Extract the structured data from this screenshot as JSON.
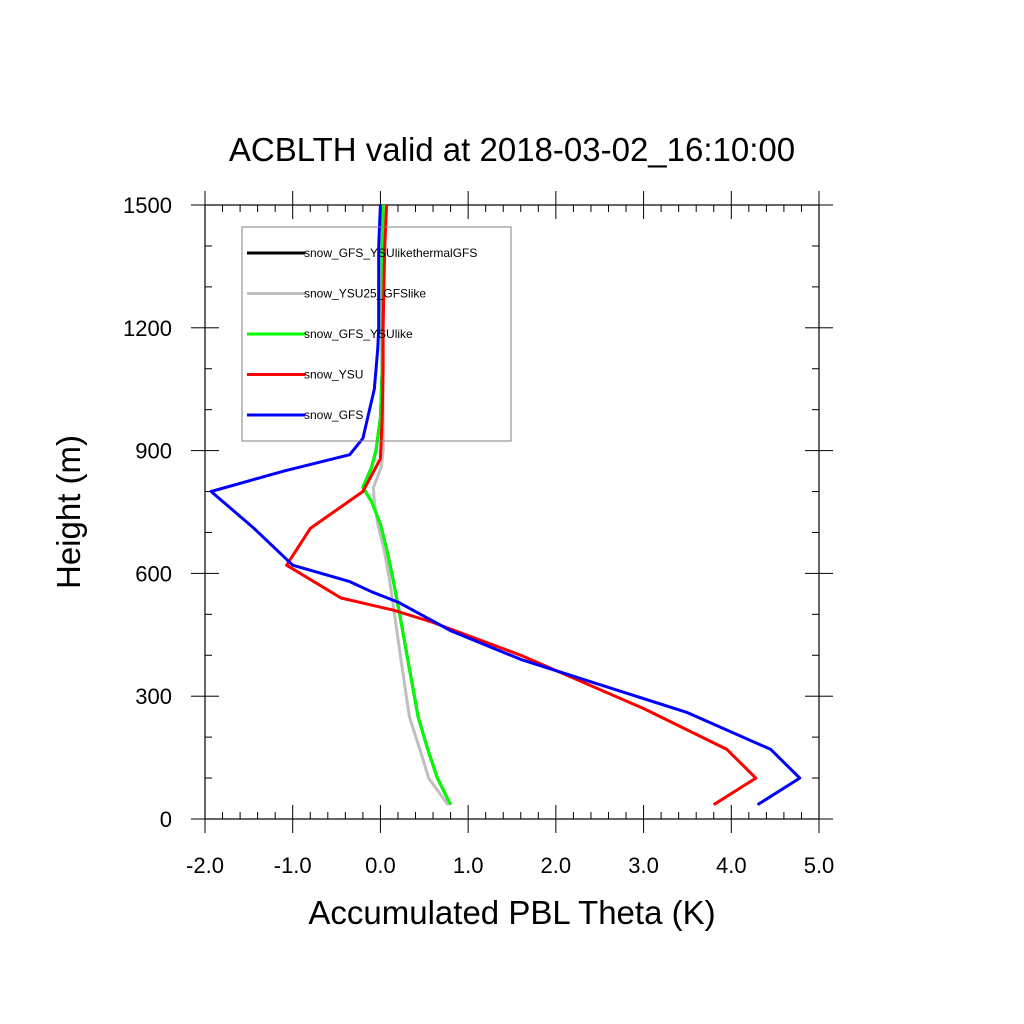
{
  "chart_data": {
    "type": "line",
    "title": "ACBLTH valid at 2018-03-02_16:10:00",
    "xlabel": "Accumulated PBL Theta (K)",
    "ylabel": "Height (m)",
    "xlim": [
      -2.0,
      5.0
    ],
    "ylim": [
      0,
      1500
    ],
    "xticks": [
      -2.0,
      -1.0,
      0.0,
      1.0,
      2.0,
      3.0,
      4.0,
      5.0
    ],
    "xtick_labels": [
      "-2.0",
      "-1.0",
      "0.0",
      "1.0",
      "2.0",
      "3.0",
      "4.0",
      "5.0"
    ],
    "yticks": [
      0,
      300,
      600,
      900,
      1200,
      1500
    ],
    "ytick_labels": [
      "0",
      "300",
      "600",
      "900",
      "1200",
      "1500"
    ],
    "grid": false,
    "legend_position": "top-left inside",
    "series": [
      {
        "name": "snow_GFS_YSUlikethermalGFS",
        "color": "#000000",
        "points": [
          [
            0.8,
            35
          ],
          [
            0.65,
            100
          ],
          [
            0.54,
            170
          ],
          [
            0.43,
            250
          ],
          [
            0.32,
            380
          ],
          [
            0.22,
            500
          ],
          [
            0.14,
            590
          ],
          [
            0.07,
            660
          ],
          [
            0.0,
            720
          ],
          [
            -0.1,
            775
          ],
          [
            -0.2,
            810
          ],
          [
            -0.1,
            860
          ],
          [
            -0.05,
            900
          ],
          [
            0.0,
            980
          ],
          [
            0.02,
            1100
          ],
          [
            0.02,
            1200
          ],
          [
            0.02,
            1300
          ],
          [
            0.02,
            1400
          ],
          [
            0.03,
            1500
          ]
        ]
      },
      {
        "name": "snow_YSU25_GFSlike",
        "color": "#bfbfbf",
        "points": [
          [
            0.77,
            35
          ],
          [
            0.55,
            100
          ],
          [
            0.45,
            170
          ],
          [
            0.33,
            250
          ],
          [
            0.24,
            380
          ],
          [
            0.16,
            500
          ],
          [
            0.1,
            590
          ],
          [
            0.04,
            660
          ],
          [
            -0.03,
            720
          ],
          [
            -0.07,
            775
          ],
          [
            -0.08,
            810
          ],
          [
            0.01,
            860
          ],
          [
            0.03,
            900
          ],
          [
            0.03,
            980
          ],
          [
            0.03,
            1100
          ],
          [
            0.03,
            1200
          ],
          [
            0.03,
            1300
          ],
          [
            0.03,
            1400
          ],
          [
            0.04,
            1500
          ]
        ]
      },
      {
        "name": "snow_GFS_YSUlike",
        "color": "#00ff00",
        "points": [
          [
            0.8,
            35
          ],
          [
            0.65,
            100
          ],
          [
            0.54,
            170
          ],
          [
            0.43,
            250
          ],
          [
            0.32,
            380
          ],
          [
            0.22,
            500
          ],
          [
            0.14,
            590
          ],
          [
            0.07,
            660
          ],
          [
            0.0,
            720
          ],
          [
            -0.1,
            775
          ],
          [
            -0.2,
            810
          ],
          [
            -0.1,
            860
          ],
          [
            -0.05,
            900
          ],
          [
            0.0,
            980
          ],
          [
            0.02,
            1100
          ],
          [
            0.02,
            1200
          ],
          [
            0.02,
            1300
          ],
          [
            0.02,
            1400
          ],
          [
            0.03,
            1500
          ]
        ]
      },
      {
        "name": "snow_YSU",
        "color": "#ff0000",
        "points": [
          [
            3.8,
            35
          ],
          [
            4.28,
            100
          ],
          [
            3.95,
            170
          ],
          [
            3.0,
            270
          ],
          [
            1.6,
            400
          ],
          [
            0.6,
            480
          ],
          [
            0.15,
            510
          ],
          [
            -0.45,
            540
          ],
          [
            -1.07,
            620
          ],
          [
            -0.8,
            710
          ],
          [
            -0.2,
            800
          ],
          [
            0.0,
            880
          ],
          [
            0.02,
            980
          ],
          [
            0.03,
            1100
          ],
          [
            0.03,
            1200
          ],
          [
            0.04,
            1300
          ],
          [
            0.05,
            1400
          ],
          [
            0.07,
            1500
          ]
        ]
      },
      {
        "name": "snow_GFS",
        "color": "#0000ff",
        "points": [
          [
            4.3,
            35
          ],
          [
            4.78,
            100
          ],
          [
            4.45,
            170
          ],
          [
            3.5,
            260
          ],
          [
            1.6,
            390
          ],
          [
            0.8,
            460
          ],
          [
            0.2,
            530
          ],
          [
            -0.1,
            555
          ],
          [
            -0.35,
            580
          ],
          [
            -1.0,
            620
          ],
          [
            -1.44,
            710
          ],
          [
            -1.93,
            800
          ],
          [
            -1.1,
            850
          ],
          [
            -0.35,
            890
          ],
          [
            -0.2,
            930
          ],
          [
            -0.07,
            1050
          ],
          [
            -0.03,
            1150
          ],
          [
            -0.02,
            1200
          ],
          [
            -0.02,
            1300
          ],
          [
            -0.02,
            1400
          ],
          [
            0.0,
            1500
          ]
        ]
      }
    ]
  }
}
